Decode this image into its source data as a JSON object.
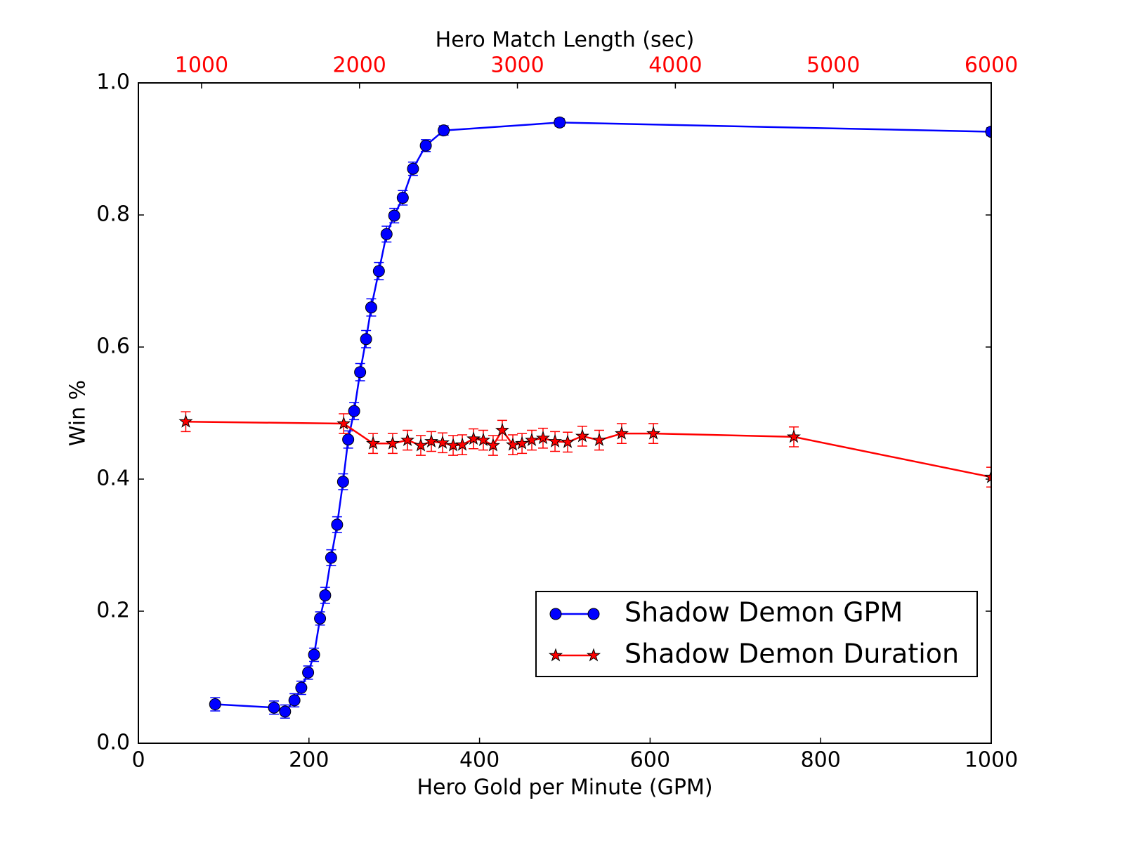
{
  "chart_data": {
    "type": "line",
    "xlabel": "Hero Gold per Minute (GPM)",
    "x2label": "Hero Match Length (sec)",
    "ylabel": "Win %",
    "xlim": [
      0,
      1000
    ],
    "xticks": [
      0,
      200,
      400,
      600,
      800,
      1000
    ],
    "x2lim": [
      600,
      6000
    ],
    "x2ticks": [
      1000,
      2000,
      3000,
      4000,
      5000,
      6000
    ],
    "x2tick_color": "#ff0000",
    "ylim": [
      0,
      1
    ],
    "yticks": [
      {
        "value": 0,
        "label": "0.0"
      },
      0.2,
      0.4,
      0.6,
      0.8,
      {
        "value": 1,
        "label": "1.0"
      }
    ],
    "legend": "lower right",
    "series": [
      {
        "name": "Shadow Demon GPM",
        "color": "#0000ff",
        "marker": "circle",
        "axis": "x",
        "x": [
          90,
          159,
          172,
          183,
          191,
          199,
          206,
          213,
          219,
          226,
          233,
          240,
          246,
          253,
          260,
          267,
          273,
          282,
          291,
          300,
          310,
          322,
          337,
          358,
          494,
          1000
        ],
        "values": [
          0.059,
          0.054,
          0.048,
          0.065,
          0.084,
          0.107,
          0.134,
          0.189,
          0.224,
          0.281,
          0.331,
          0.396,
          0.46,
          0.503,
          0.562,
          0.612,
          0.66,
          0.715,
          0.771,
          0.799,
          0.826,
          0.87,
          0.905,
          0.928,
          0.94,
          0.926
        ],
        "errors": [
          0.01,
          0.01,
          0.01,
          0.01,
          0.01,
          0.01,
          0.01,
          0.01,
          0.012,
          0.012,
          0.012,
          0.012,
          0.013,
          0.013,
          0.013,
          0.013,
          0.013,
          0.013,
          0.012,
          0.011,
          0.011,
          0.01,
          0.009,
          0.007,
          0.006,
          0.006
        ]
      },
      {
        "name": "Shadow Demon Duration",
        "color": "#ff0000",
        "marker": "star",
        "axis": "x2",
        "x": [
          900,
          1900,
          2086,
          2210,
          2304,
          2388,
          2455,
          2526,
          2593,
          2651,
          2722,
          2784,
          2846,
          2904,
          2971,
          3029,
          3091,
          3162,
          3238,
          3318,
          3411,
          3518,
          3660,
          3861,
          4750,
          6000
        ],
        "values": [
          0.487,
          0.484,
          0.454,
          0.454,
          0.459,
          0.451,
          0.457,
          0.455,
          0.451,
          0.452,
          0.461,
          0.459,
          0.451,
          0.474,
          0.452,
          0.454,
          0.459,
          0.462,
          0.457,
          0.456,
          0.465,
          0.459,
          0.469,
          0.469,
          0.464,
          0.403
        ],
        "errors": [
          0.015,
          0.015,
          0.015,
          0.015,
          0.015,
          0.015,
          0.015,
          0.015,
          0.015,
          0.015,
          0.015,
          0.015,
          0.015,
          0.015,
          0.015,
          0.015,
          0.015,
          0.015,
          0.015,
          0.015,
          0.015,
          0.015,
          0.015,
          0.015,
          0.015,
          0.015
        ]
      }
    ]
  }
}
